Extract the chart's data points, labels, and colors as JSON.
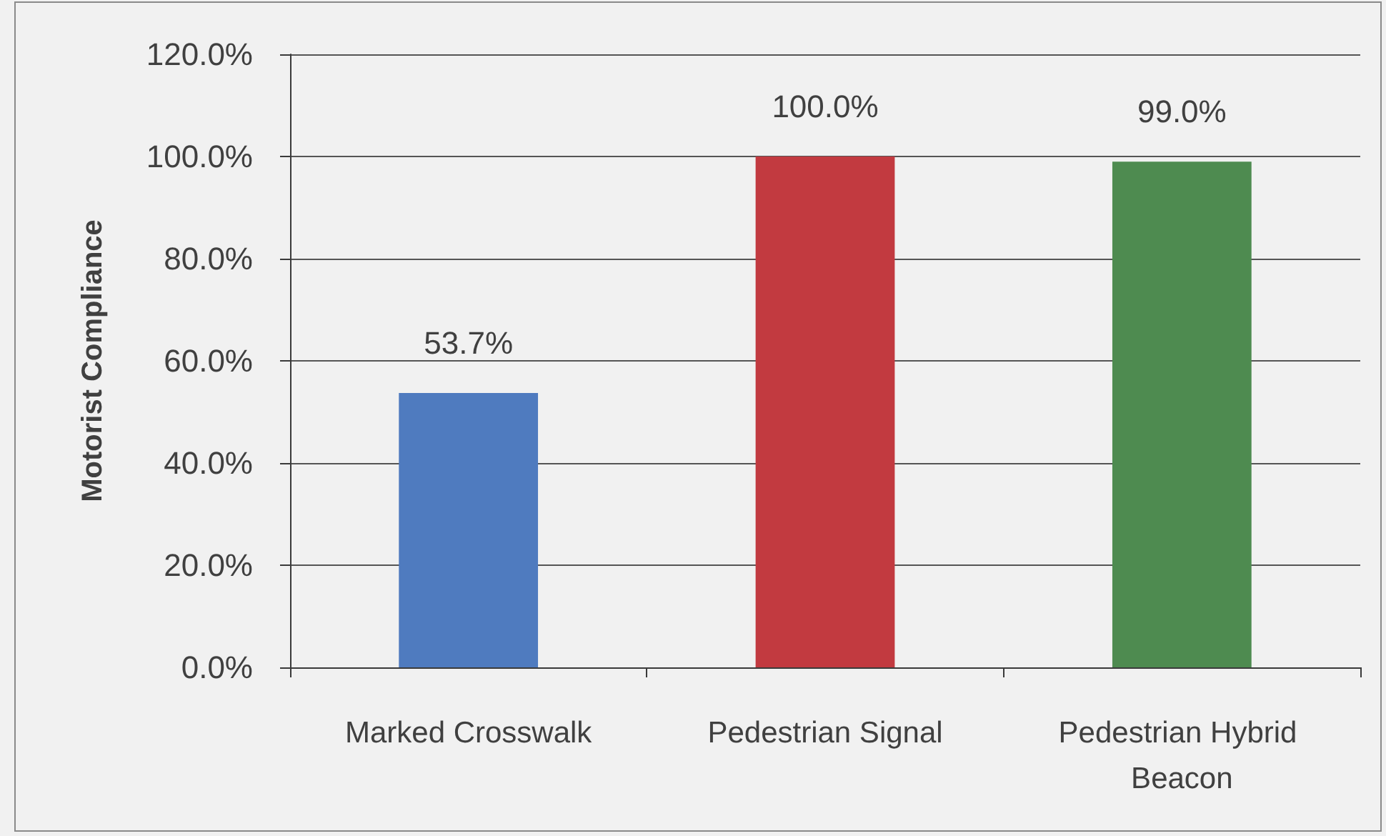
{
  "chart_data": {
    "type": "bar",
    "categories": [
      "Marked Crosswalk",
      "Pedestrian Signal",
      "Pedestrian Hybrid Beacon"
    ],
    "values": [
      53.7,
      100.0,
      99.0
    ],
    "colors": [
      "#4f7bbf",
      "#c23a40",
      "#4e8b50"
    ],
    "value_labels": [
      "53.7%",
      "100.0%",
      "99.0%"
    ],
    "ylabel": "Motorist Compliance",
    "ylim": [
      0,
      120
    ],
    "yticks": [
      {
        "value": 0,
        "label": "0.0%"
      },
      {
        "value": 20,
        "label": "20.0%"
      },
      {
        "value": 40,
        "label": "40.0%"
      },
      {
        "value": 60,
        "label": "60.0%"
      },
      {
        "value": 80,
        "label": "80.0%"
      },
      {
        "value": 100,
        "label": "100.0%"
      },
      {
        "value": 120,
        "label": "120.0%"
      }
    ],
    "grid": "y"
  }
}
